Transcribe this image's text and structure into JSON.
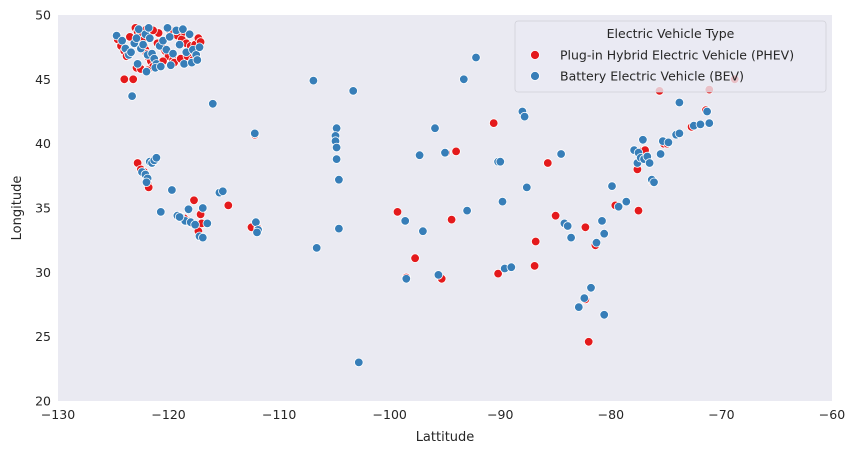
{
  "chart_data": {
    "type": "scatter",
    "title": "",
    "xlabel": "Lattitude",
    "ylabel": "Longitude",
    "xlim": [
      -130,
      -60
    ],
    "ylim": [
      20,
      50
    ],
    "xticks": [
      -130,
      -120,
      -110,
      -100,
      -90,
      -80,
      -70,
      -60
    ],
    "yticks": [
      20,
      25,
      30,
      35,
      40,
      45,
      50
    ],
    "grid": false,
    "background": "#eaeaf2",
    "legend": {
      "title": "Electric Vehicle Type",
      "placement": "top-right"
    },
    "series": [
      {
        "name": "Plug-in Hybrid Electric Vehicle (PHEV)",
        "color": "#e41a1c",
        "points": [
          [
            -124.6,
            48.1
          ],
          [
            -124.3,
            47.6
          ],
          [
            -124.0,
            47.2
          ],
          [
            -123.8,
            46.8
          ],
          [
            -123.5,
            48.3
          ],
          [
            -123.0,
            49.0
          ],
          [
            -122.8,
            48.7
          ],
          [
            -122.6,
            48.4
          ],
          [
            -122.4,
            48.0
          ],
          [
            -122.2,
            47.6
          ],
          [
            -122.1,
            47.3
          ],
          [
            -122.0,
            47.0
          ],
          [
            -121.8,
            46.7
          ],
          [
            -121.6,
            46.4
          ],
          [
            -121.4,
            46.0
          ],
          [
            -121.0,
            47.8
          ],
          [
            -120.6,
            47.5
          ],
          [
            -120.3,
            47.2
          ],
          [
            -120.0,
            46.8
          ],
          [
            -119.6,
            46.5
          ],
          [
            -119.2,
            48.4
          ],
          [
            -118.8,
            48.1
          ],
          [
            -118.4,
            47.8
          ],
          [
            -118.0,
            47.6
          ],
          [
            -117.6,
            47.7
          ],
          [
            -117.3,
            48.2
          ],
          [
            -117.1,
            47.9
          ],
          [
            -123.2,
            45.0
          ],
          [
            -124.0,
            45.0
          ],
          [
            -122.9,
            45.9
          ],
          [
            -122.5,
            45.8
          ],
          [
            -121.9,
            45.7
          ],
          [
            -120.5,
            46.4
          ],
          [
            -119.5,
            46.3
          ],
          [
            -118.9,
            46.6
          ],
          [
            -118.3,
            46.8
          ],
          [
            -117.8,
            46.5
          ],
          [
            -120.9,
            48.6
          ],
          [
            -121.4,
            48.8
          ],
          [
            -122.0,
            48.9
          ],
          [
            -119.9,
            48.8
          ],
          [
            -118.6,
            48.7
          ],
          [
            -122.8,
            38.5
          ],
          [
            -122.5,
            38.0
          ],
          [
            -122.2,
            37.8
          ],
          [
            -122.0,
            37.4
          ],
          [
            -121.9,
            36.9
          ],
          [
            -121.8,
            36.6
          ],
          [
            -117.7,
            35.6
          ],
          [
            -117.1,
            34.5
          ],
          [
            -117.0,
            33.8
          ],
          [
            -117.3,
            33.2
          ],
          [
            -117.9,
            33.8
          ],
          [
            -118.3,
            34.0
          ],
          [
            -118.6,
            34.2
          ],
          [
            -114.6,
            35.2
          ],
          [
            -112.2,
            40.7
          ],
          [
            -112.5,
            33.5
          ],
          [
            -111.9,
            33.4
          ],
          [
            -99.3,
            34.7
          ],
          [
            -98.5,
            29.6
          ],
          [
            -97.7,
            31.1
          ],
          [
            -95.3,
            29.5
          ],
          [
            -94.9,
            39.3
          ],
          [
            -94.4,
            34.1
          ],
          [
            -94.0,
            39.4
          ],
          [
            -90.6,
            41.6
          ],
          [
            -90.2,
            29.9
          ],
          [
            -86.8,
            32.4
          ],
          [
            -86.9,
            30.5
          ],
          [
            -85.7,
            38.5
          ],
          [
            -85.0,
            34.4
          ],
          [
            -82.3,
            27.9
          ],
          [
            -82.3,
            33.5
          ],
          [
            -82.0,
            24.6
          ],
          [
            -81.4,
            32.1
          ],
          [
            -79.6,
            35.2
          ],
          [
            -77.6,
            38.0
          ],
          [
            -77.5,
            34.8
          ],
          [
            -77.2,
            39.4
          ],
          [
            -76.9,
            39.5
          ],
          [
            -76.2,
            37.0
          ],
          [
            -75.2,
            40.0
          ],
          [
            -74.9,
            40.0
          ],
          [
            -72.7,
            41.3
          ],
          [
            -71.4,
            42.6
          ],
          [
            -71.1,
            44.2
          ],
          [
            -68.8,
            45.0
          ],
          [
            -75.6,
            44.1
          ]
        ]
      },
      {
        "name": "Battery Electric Vehicle (BEV)",
        "color": "#377eb8",
        "points": [
          [
            -124.7,
            48.4
          ],
          [
            -124.2,
            48.0
          ],
          [
            -123.9,
            47.4
          ],
          [
            -123.6,
            46.9
          ],
          [
            -123.4,
            47.1
          ],
          [
            -123.1,
            47.8
          ],
          [
            -122.9,
            48.2
          ],
          [
            -122.7,
            48.9
          ],
          [
            -122.5,
            47.4
          ],
          [
            -122.3,
            47.7
          ],
          [
            -122.1,
            48.5
          ],
          [
            -121.9,
            46.9
          ],
          [
            -121.7,
            48.2
          ],
          [
            -121.5,
            47.0
          ],
          [
            -121.3,
            46.6
          ],
          [
            -121.1,
            46.2
          ],
          [
            -120.8,
            47.6
          ],
          [
            -120.5,
            48.0
          ],
          [
            -120.2,
            47.3
          ],
          [
            -119.9,
            48.3
          ],
          [
            -119.6,
            47.0
          ],
          [
            -119.3,
            48.8
          ],
          [
            -119.0,
            47.7
          ],
          [
            -118.7,
            48.9
          ],
          [
            -118.4,
            47.1
          ],
          [
            -118.1,
            48.5
          ],
          [
            -117.8,
            47.3
          ],
          [
            -117.5,
            46.9
          ],
          [
            -117.2,
            47.5
          ],
          [
            -123.3,
            43.7
          ],
          [
            -122.8,
            46.2
          ],
          [
            -122.0,
            45.6
          ],
          [
            -121.2,
            45.9
          ],
          [
            -120.7,
            46.0
          ],
          [
            -119.8,
            46.1
          ],
          [
            -118.6,
            46.2
          ],
          [
            -117.9,
            46.3
          ],
          [
            -117.4,
            46.5
          ],
          [
            -120.1,
            49.0
          ],
          [
            -121.8,
            49.0
          ],
          [
            -122.4,
            37.8
          ],
          [
            -122.1,
            37.6
          ],
          [
            -121.9,
            37.3
          ],
          [
            -121.7,
            38.6
          ],
          [
            -121.5,
            38.5
          ],
          [
            -121.3,
            38.7
          ],
          [
            -121.1,
            38.9
          ],
          [
            -122.0,
            37.0
          ],
          [
            -119.7,
            36.4
          ],
          [
            -119.2,
            34.4
          ],
          [
            -118.9,
            34.3
          ],
          [
            -118.5,
            34.0
          ],
          [
            -118.2,
            34.9
          ],
          [
            -118.0,
            33.9
          ],
          [
            -117.6,
            33.7
          ],
          [
            -117.2,
            32.8
          ],
          [
            -116.9,
            32.7
          ],
          [
            -116.9,
            35.0
          ],
          [
            -116.5,
            33.8
          ],
          [
            -120.7,
            34.7
          ],
          [
            -119.0,
            34.3
          ],
          [
            -115.4,
            36.2
          ],
          [
            -115.1,
            36.3
          ],
          [
            -116.0,
            43.1
          ],
          [
            -112.1,
            33.9
          ],
          [
            -111.9,
            33.3
          ],
          [
            -112.0,
            33.1
          ],
          [
            -112.2,
            40.8
          ],
          [
            -106.9,
            44.9
          ],
          [
            -106.6,
            31.9
          ],
          [
            -104.8,
            41.2
          ],
          [
            -104.9,
            40.6
          ],
          [
            -104.9,
            40.2
          ],
          [
            -104.8,
            39.7
          ],
          [
            -104.8,
            38.8
          ],
          [
            -104.6,
            37.2
          ],
          [
            -104.6,
            33.4
          ],
          [
            -103.3,
            44.1
          ],
          [
            -102.8,
            23.0
          ],
          [
            -98.6,
            34.0
          ],
          [
            -98.5,
            29.5
          ],
          [
            -97.3,
            39.1
          ],
          [
            -97.0,
            33.2
          ],
          [
            -95.9,
            41.2
          ],
          [
            -95.6,
            29.8
          ],
          [
            -95.0,
            39.3
          ],
          [
            -93.3,
            45.0
          ],
          [
            -93.0,
            34.8
          ],
          [
            -92.2,
            46.7
          ],
          [
            -90.2,
            38.6
          ],
          [
            -90.0,
            38.6
          ],
          [
            -89.8,
            35.5
          ],
          [
            -89.6,
            30.3
          ],
          [
            -89.0,
            30.4
          ],
          [
            -88.0,
            42.5
          ],
          [
            -87.8,
            42.1
          ],
          [
            -87.6,
            36.6
          ],
          [
            -84.5,
            39.2
          ],
          [
            -84.2,
            33.8
          ],
          [
            -83.9,
            33.6
          ],
          [
            -83.6,
            32.7
          ],
          [
            -82.9,
            27.3
          ],
          [
            -82.4,
            28.0
          ],
          [
            -81.8,
            28.8
          ],
          [
            -81.3,
            32.3
          ],
          [
            -80.6,
            26.7
          ],
          [
            -80.8,
            34.0
          ],
          [
            -80.6,
            33.0
          ],
          [
            -79.9,
            36.7
          ],
          [
            -79.3,
            35.1
          ],
          [
            -78.6,
            35.5
          ],
          [
            -77.9,
            39.5
          ],
          [
            -77.6,
            38.5
          ],
          [
            -77.5,
            39.3
          ],
          [
            -77.3,
            38.9
          ],
          [
            -77.1,
            40.3
          ],
          [
            -77.0,
            38.8
          ],
          [
            -76.7,
            39.0
          ],
          [
            -76.5,
            38.5
          ],
          [
            -76.3,
            37.2
          ],
          [
            -76.1,
            37.0
          ],
          [
            -75.5,
            39.2
          ],
          [
            -75.3,
            40.2
          ],
          [
            -74.8,
            40.1
          ],
          [
            -74.1,
            40.7
          ],
          [
            -73.8,
            40.8
          ],
          [
            -73.8,
            43.2
          ],
          [
            -72.5,
            41.4
          ],
          [
            -71.9,
            41.5
          ],
          [
            -71.1,
            41.6
          ],
          [
            -71.3,
            42.5
          ]
        ]
      }
    ]
  }
}
